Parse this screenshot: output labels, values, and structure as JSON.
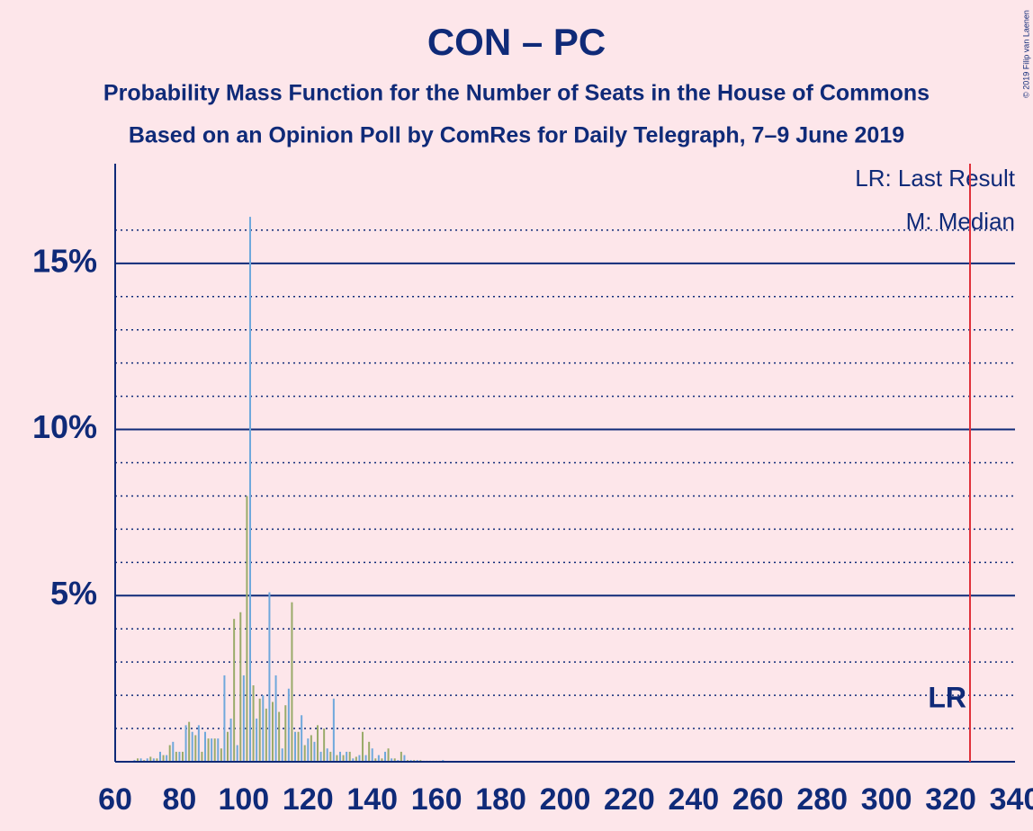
{
  "chart_data": {
    "type": "bar",
    "title": "CON – PC",
    "subtitle": "Probability Mass Function for the Number of Seats in the House of Commons",
    "subtitle2": "Based on an Opinion Poll by ComRes for Daily Telegraph, 7–9 June 2019",
    "legend": [
      "LR: Last Result",
      "M: Median"
    ],
    "copyright": "© 2019 Filip van Laenen",
    "colors": [
      "#6fa8dc",
      "#9aab6a"
    ],
    "x": [
      66,
      67,
      68,
      69,
      70,
      71,
      72,
      73,
      74,
      75,
      76,
      77,
      78,
      79,
      80,
      81,
      82,
      83,
      84,
      85,
      86,
      87,
      88,
      89,
      90,
      91,
      92,
      93,
      94,
      95,
      96,
      97,
      98,
      99,
      100,
      101,
      102,
      103,
      104,
      105,
      106,
      107,
      108,
      109,
      110,
      111,
      112,
      113,
      114,
      115,
      116,
      117,
      118,
      119,
      120,
      121,
      122,
      123,
      124,
      125,
      126,
      127,
      128,
      129,
      130,
      131,
      132,
      133,
      134,
      135,
      136,
      137,
      138,
      139,
      140,
      141,
      142,
      143,
      144,
      145,
      146,
      147,
      148,
      149,
      150,
      151,
      152,
      153,
      154,
      155,
      156,
      157,
      158,
      159,
      160,
      161,
      162
    ],
    "values": [
      0.05,
      0.1,
      0.1,
      0.05,
      0.1,
      0.15,
      0.1,
      0.1,
      0.3,
      0.2,
      0.2,
      0.5,
      0.6,
      0.3,
      0.3,
      0.3,
      1.1,
      1.2,
      0.9,
      0.8,
      1.1,
      0.3,
      0.9,
      0.7,
      0.7,
      0.7,
      0.7,
      0.4,
      2.6,
      0.9,
      1.3,
      4.3,
      0.5,
      4.5,
      2.6,
      8.0,
      16.4,
      2.3,
      1.3,
      1.9,
      2.0,
      1.6,
      5.1,
      1.8,
      2.6,
      1.5,
      0.4,
      1.7,
      2.2,
      4.8,
      0.9,
      0.9,
      1.4,
      0.5,
      0.7,
      0.8,
      0.6,
      1.1,
      0.3,
      1.0,
      0.4,
      0.3,
      1.9,
      0.2,
      0.3,
      0.2,
      0.3,
      0.3,
      0.1,
      0.15,
      0.2,
      0.9,
      0.2,
      0.6,
      0.4,
      0.1,
      0.2,
      0.1,
      0.3,
      0.4,
      0.1,
      0.1,
      0.05,
      0.3,
      0.2,
      0.05,
      0.05,
      0.05,
      0.05,
      0.05,
      0.03,
      0.03,
      0.03,
      0.03,
      0.03,
      0.03,
      0.05
    ],
    "xlim": [
      60,
      340
    ],
    "xticks": [
      60,
      80,
      100,
      120,
      140,
      160,
      180,
      200,
      220,
      240,
      260,
      280,
      300,
      320,
      340
    ],
    "ylim": [
      0,
      18
    ],
    "yticks": [
      {
        "value": 5,
        "label": "5%"
      },
      {
        "value": 10,
        "label": "10%"
      },
      {
        "value": 15,
        "label": "15%"
      }
    ],
    "minor_yticks": [
      1,
      2,
      3,
      4,
      6,
      7,
      8,
      9,
      11,
      12,
      13,
      14,
      16
    ],
    "last_result": 326,
    "last_result_label": "LR",
    "last_result_color": "#e0303a"
  }
}
